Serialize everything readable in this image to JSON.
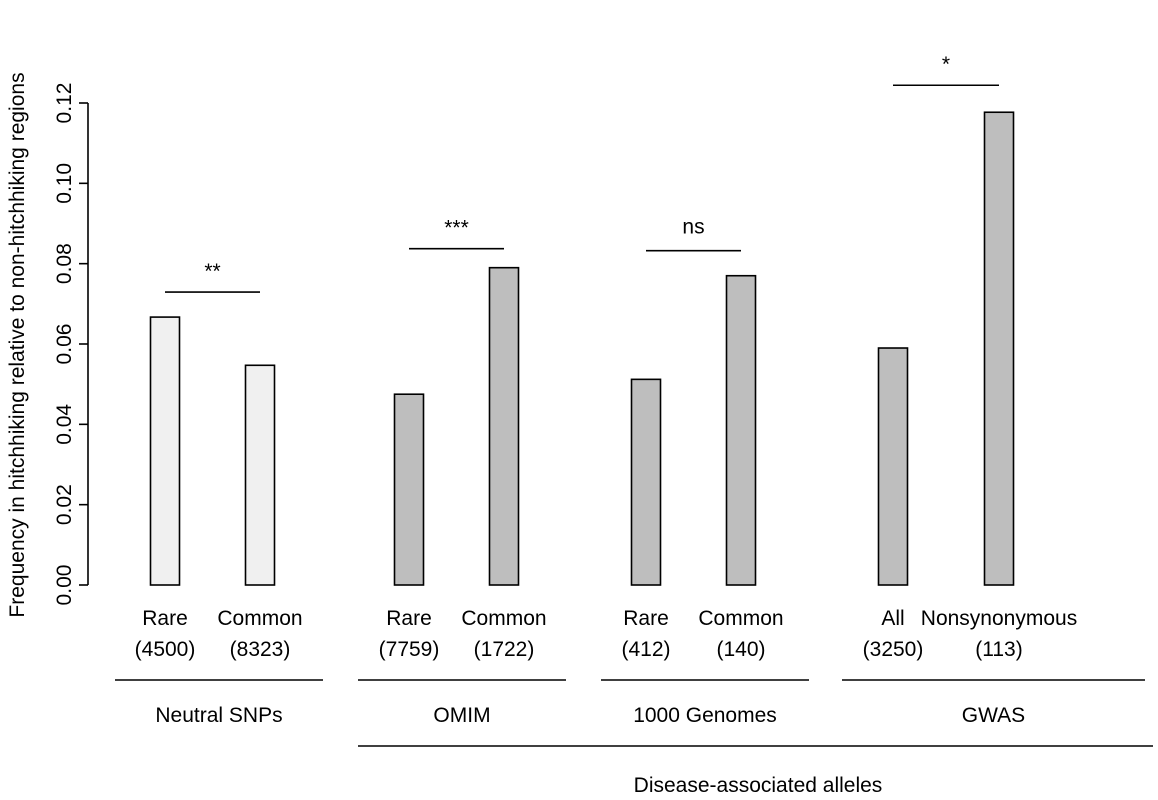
{
  "chart_data": {
    "type": "bar",
    "ylabel": "Frequency in hitchhiking relative to non-hitchhiking regions",
    "ylim": [
      0,
      0.12
    ],
    "yticks": [
      "0.00",
      "0.02",
      "0.04",
      "0.06",
      "0.08",
      "0.10",
      "0.12"
    ],
    "ytick_values": [
      0,
      0.02,
      0.04,
      0.06,
      0.08,
      0.1,
      0.12
    ],
    "grid": false,
    "colors": {
      "neutral": "#f0f0f0",
      "disease": "#bebebe",
      "edge": "#000000"
    },
    "groups": [
      {
        "name": "Neutral SNPs",
        "significance": "**",
        "bars": [
          {
            "label": "Rare",
            "count": "(4500)",
            "value": 0.0667,
            "fill": "neutral"
          },
          {
            "label": "Common",
            "count": "(8323)",
            "value": 0.0547,
            "fill": "neutral"
          }
        ]
      },
      {
        "name": "OMIM",
        "significance": "***",
        "bars": [
          {
            "label": "Rare",
            "count": "(7759)",
            "value": 0.0475,
            "fill": "disease"
          },
          {
            "label": "Common",
            "count": "(1722)",
            "value": 0.079,
            "fill": "disease"
          }
        ]
      },
      {
        "name": "1000 Genomes",
        "significance": "ns",
        "bars": [
          {
            "label": "Rare",
            "count": "(412)",
            "value": 0.0512,
            "fill": "disease"
          },
          {
            "label": "Common",
            "count": "(140)",
            "value": 0.077,
            "fill": "disease"
          }
        ]
      },
      {
        "name": "GWAS",
        "significance": "*",
        "bars": [
          {
            "label": "All",
            "count": "(3250)",
            "value": 0.059,
            "fill": "disease"
          },
          {
            "label": "Nonsynonymous",
            "count": "(113)",
            "value": 0.1177,
            "fill": "disease"
          }
        ]
      }
    ],
    "super_group": "Disease-associated alleles"
  }
}
